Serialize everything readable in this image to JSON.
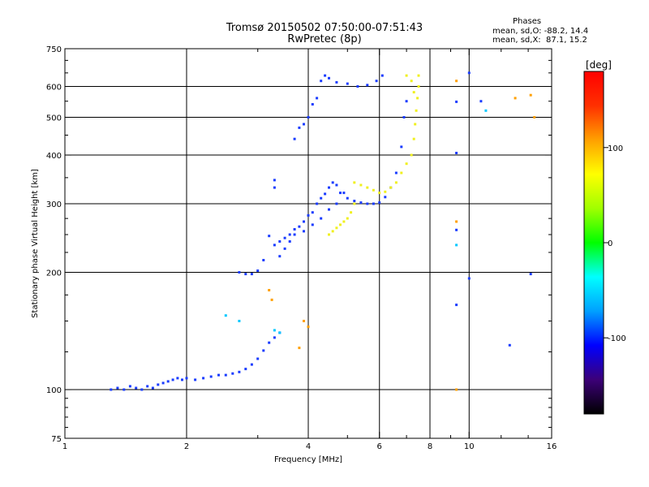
{
  "chart_data": {
    "type": "scatter",
    "title": "Tromsø 20150502 07:50:00-07:51:43",
    "subtitle": "RwPretec (8p)",
    "xlabel": "Frequency [MHz]",
    "ylabel": "Stationary phase Virtual Height [km]",
    "x_scale": "log",
    "y_scale": "log",
    "xlim": [
      1,
      16
    ],
    "ylim": [
      75,
      750
    ],
    "x_ticks": [
      1,
      2,
      4,
      6,
      8,
      10,
      16
    ],
    "y_ticks": [
      75,
      100,
      200,
      300,
      400,
      500,
      600,
      750
    ],
    "grid": true,
    "stats": {
      "heading": "Phases",
      "line_o": "mean, sd,O: -88.2, 14.4",
      "line_x": "mean, sd,X:  87.1, 15.2"
    },
    "colorbar": {
      "label": "[deg]",
      "range": [
        -180,
        180
      ],
      "ticks": [
        100,
        0,
        -100
      ],
      "colors": [
        "#000000",
        "#3c0078",
        "#0000ff",
        "#00a0ff",
        "#00ffff",
        "#00ff00",
        "#a0ff00",
        "#ffff00",
        "#ffa000",
        "#ff3000",
        "#ff0000"
      ]
    },
    "series": [
      {
        "color": "#1a3cff",
        "points": [
          [
            1.3,
            100
          ],
          [
            1.35,
            101
          ],
          [
            1.4,
            100
          ],
          [
            1.45,
            102
          ],
          [
            1.5,
            101
          ],
          [
            1.55,
            100
          ],
          [
            1.6,
            102
          ],
          [
            1.65,
            101
          ],
          [
            1.7,
            103
          ],
          [
            1.75,
            104
          ],
          [
            1.8,
            105
          ],
          [
            1.85,
            106
          ],
          [
            1.9,
            107
          ],
          [
            1.95,
            106
          ],
          [
            2.0,
            107
          ],
          [
            2.1,
            106
          ],
          [
            2.2,
            107
          ],
          [
            2.3,
            108
          ],
          [
            2.4,
            109
          ],
          [
            2.5,
            109
          ],
          [
            2.6,
            110
          ],
          [
            2.7,
            111
          ],
          [
            2.8,
            113
          ],
          [
            2.9,
            116
          ],
          [
            3.0,
            120
          ],
          [
            3.1,
            126
          ],
          [
            3.2,
            132
          ],
          [
            3.3,
            136
          ],
          [
            3.4,
            140
          ],
          [
            2.7,
            200
          ],
          [
            2.8,
            198
          ],
          [
            2.9,
            198
          ],
          [
            3.0,
            202
          ],
          [
            3.1,
            215
          ],
          [
            3.2,
            248
          ],
          [
            3.3,
            235
          ],
          [
            3.4,
            240
          ],
          [
            3.5,
            245
          ],
          [
            3.6,
            250
          ],
          [
            3.7,
            258
          ],
          [
            3.8,
            262
          ],
          [
            3.9,
            270
          ],
          [
            4.0,
            280
          ],
          [
            4.1,
            285
          ],
          [
            4.2,
            300
          ],
          [
            4.3,
            310
          ],
          [
            4.4,
            318
          ],
          [
            4.5,
            330
          ],
          [
            4.6,
            340
          ],
          [
            4.7,
            335
          ],
          [
            4.8,
            320
          ],
          [
            5.0,
            310
          ],
          [
            5.2,
            305
          ],
          [
            5.4,
            302
          ],
          [
            5.6,
            300
          ],
          [
            5.8,
            300
          ],
          [
            6.0,
            302
          ],
          [
            6.2,
            312
          ],
          [
            6.4,
            330
          ],
          [
            6.6,
            360
          ],
          [
            6.8,
            420
          ],
          [
            6.9,
            500
          ],
          [
            7.0,
            550
          ],
          [
            3.4,
            220
          ],
          [
            3.5,
            230
          ],
          [
            3.6,
            240
          ],
          [
            3.7,
            250
          ],
          [
            3.9,
            255
          ],
          [
            4.1,
            265
          ],
          [
            4.3,
            275
          ],
          [
            4.5,
            290
          ],
          [
            4.7,
            300
          ],
          [
            4.9,
            320
          ],
          [
            3.7,
            440
          ],
          [
            3.8,
            470
          ],
          [
            3.9,
            480
          ],
          [
            4.0,
            500
          ],
          [
            4.1,
            540
          ],
          [
            4.2,
            560
          ],
          [
            4.3,
            620
          ],
          [
            4.4,
            640
          ],
          [
            4.5,
            630
          ],
          [
            4.7,
            615
          ],
          [
            5.0,
            610
          ],
          [
            5.3,
            600
          ],
          [
            5.6,
            605
          ],
          [
            5.9,
            620
          ],
          [
            6.1,
            640
          ],
          [
            3.3,
            330
          ],
          [
            3.3,
            345
          ],
          [
            9.3,
            165
          ],
          [
            9.3,
            405
          ],
          [
            9.3,
            548
          ],
          [
            9.3,
            257
          ],
          [
            10.0,
            650
          ],
          [
            10.0,
            193
          ],
          [
            14.2,
            198
          ],
          [
            12.6,
            130
          ],
          [
            10.7,
            550
          ]
        ]
      },
      {
        "color": "#f0f01e",
        "points": [
          [
            5.2,
            340
          ],
          [
            5.4,
            335
          ],
          [
            5.6,
            330
          ],
          [
            5.8,
            325
          ],
          [
            6.0,
            320
          ],
          [
            6.2,
            322
          ],
          [
            6.4,
            330
          ],
          [
            6.6,
            340
          ],
          [
            6.8,
            360
          ],
          [
            7.0,
            380
          ],
          [
            7.2,
            400
          ],
          [
            7.3,
            440
          ],
          [
            7.35,
            480
          ],
          [
            7.4,
            520
          ],
          [
            7.45,
            560
          ],
          [
            7.5,
            600
          ],
          [
            7.5,
            640
          ],
          [
            7.2,
            620
          ],
          [
            7.3,
            580
          ],
          [
            4.5,
            250
          ],
          [
            4.6,
            255
          ],
          [
            4.7,
            260
          ],
          [
            4.8,
            265
          ],
          [
            4.9,
            270
          ],
          [
            5.0,
            275
          ],
          [
            5.1,
            285
          ],
          [
            5.2,
            300
          ],
          [
            7.0,
            640
          ]
        ]
      },
      {
        "color": "#ffa000",
        "points": [
          [
            3.2,
            180
          ],
          [
            3.25,
            170
          ],
          [
            3.8,
            128
          ],
          [
            3.9,
            150
          ],
          [
            4.0,
            145
          ],
          [
            9.3,
            620
          ],
          [
            9.3,
            270
          ],
          [
            9.3,
            100
          ],
          [
            13.0,
            560
          ],
          [
            14.2,
            570
          ],
          [
            14.5,
            500
          ]
        ]
      },
      {
        "color": "#00c8ff",
        "points": [
          [
            2.5,
            155
          ],
          [
            2.7,
            150
          ],
          [
            3.3,
            142
          ],
          [
            3.4,
            140
          ],
          [
            11.0,
            520
          ],
          [
            9.3,
            235
          ]
        ]
      }
    ]
  }
}
